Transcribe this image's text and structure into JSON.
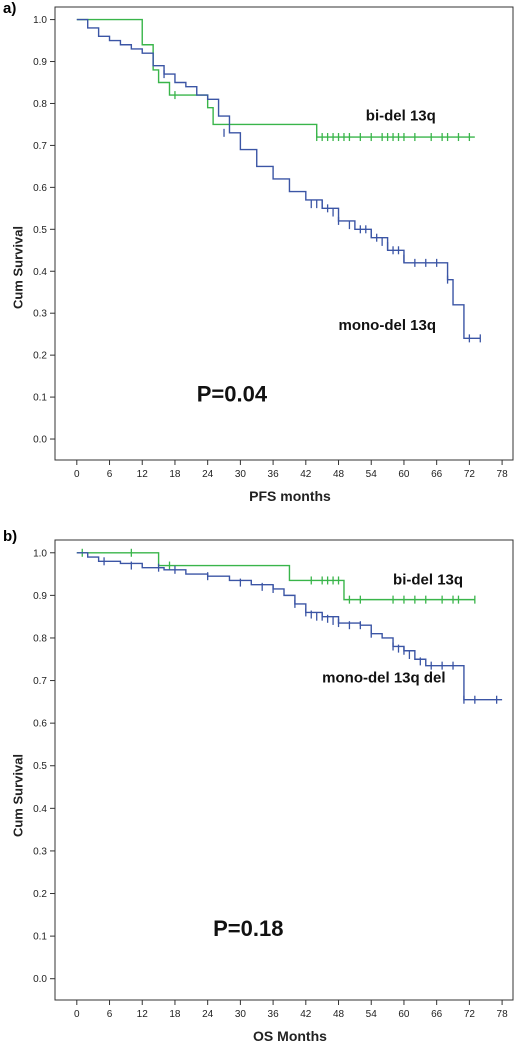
{
  "chart_data": [
    {
      "type": "line",
      "panel_label": "a)",
      "xlabel": "PFS months",
      "ylabel": "Cum Survival",
      "xlim": [
        -4,
        80
      ],
      "ylim": [
        -0.05,
        1.03
      ],
      "xticks": [
        0,
        6,
        12,
        18,
        24,
        30,
        36,
        42,
        48,
        54,
        60,
        66,
        72,
        78
      ],
      "yticks": [
        0.0,
        0.1,
        0.2,
        0.3,
        0.4,
        0.5,
        0.6,
        0.7,
        0.8,
        0.9,
        1.0
      ],
      "grid": false,
      "annotations": [
        {
          "text": "bi-del 13q",
          "x": 53,
          "y": 0.76,
          "size": 15
        },
        {
          "text": "mono-del 13q",
          "x": 48,
          "y": 0.26,
          "size": 15
        },
        {
          "text": "P=0.04",
          "x": 22,
          "y": 0.09,
          "size": 22
        }
      ],
      "series": [
        {
          "name": "bi-del 13q",
          "color": "#39b54a",
          "x": [
            0,
            6,
            12,
            14,
            15,
            16,
            17,
            20,
            24,
            25,
            30,
            31,
            43,
            44,
            73
          ],
          "y": [
            1.0,
            1.0,
            0.94,
            0.88,
            0.85,
            0.85,
            0.82,
            0.82,
            0.79,
            0.75,
            0.75,
            0.75,
            0.75,
            0.72,
            0.72
          ],
          "censor_x": [
            18,
            44,
            45,
            46,
            47,
            48,
            49,
            50,
            52,
            54,
            56,
            57,
            58,
            59,
            60,
            62,
            65,
            67,
            68,
            70,
            72
          ],
          "censor_y": [
            0.82,
            0.72,
            0.72,
            0.72,
            0.72,
            0.72,
            0.72,
            0.72,
            0.72,
            0.72,
            0.72,
            0.72,
            0.72,
            0.72,
            0.72,
            0.72,
            0.72,
            0.72,
            0.72,
            0.72,
            0.72
          ]
        },
        {
          "name": "mono-del 13q",
          "color": "#3b55a5",
          "x": [
            0,
            2,
            4,
            6,
            8,
            10,
            12,
            14,
            16,
            18,
            20,
            22,
            24,
            26,
            28,
            30,
            33,
            36,
            39,
            42,
            45,
            48,
            51,
            54,
            57,
            60,
            63,
            66,
            68,
            69,
            70,
            71,
            74
          ],
          "y": [
            1.0,
            0.98,
            0.96,
            0.95,
            0.94,
            0.93,
            0.92,
            0.89,
            0.87,
            0.85,
            0.84,
            0.82,
            0.81,
            0.77,
            0.73,
            0.69,
            0.65,
            0.62,
            0.59,
            0.57,
            0.55,
            0.52,
            0.5,
            0.48,
            0.45,
            0.42,
            0.42,
            0.42,
            0.38,
            0.32,
            0.32,
            0.24,
            0.24
          ],
          "censor_x": [
            16,
            27,
            43,
            44,
            45,
            46,
            47,
            48,
            50,
            52,
            53,
            54,
            55,
            56,
            57,
            58,
            59,
            60,
            62,
            64,
            66,
            68,
            72,
            74
          ],
          "censor_y": [
            0.87,
            0.73,
            0.56,
            0.56,
            0.56,
            0.55,
            0.54,
            0.52,
            0.51,
            0.5,
            0.5,
            0.49,
            0.48,
            0.47,
            0.46,
            0.45,
            0.45,
            0.43,
            0.42,
            0.42,
            0.42,
            0.38,
            0.24,
            0.24
          ]
        }
      ]
    },
    {
      "type": "line",
      "panel_label": "b)",
      "xlabel": "OS Months",
      "ylabel": "Cum Survival",
      "xlim": [
        -4,
        80
      ],
      "ylim": [
        -0.05,
        1.03
      ],
      "xticks": [
        0,
        6,
        12,
        18,
        24,
        30,
        36,
        42,
        48,
        54,
        60,
        66,
        72,
        78
      ],
      "yticks": [
        0.0,
        0.1,
        0.2,
        0.3,
        0.4,
        0.5,
        0.6,
        0.7,
        0.8,
        0.9,
        1.0
      ],
      "grid": false,
      "annotations": [
        {
          "text": "bi-del 13q",
          "x": 58,
          "y": 0.925,
          "size": 15
        },
        {
          "text": "mono-del 13q del",
          "x": 45,
          "y": 0.695,
          "size": 15
        },
        {
          "text": "P=0.18",
          "x": 25,
          "y": 0.1,
          "size": 22
        }
      ],
      "series": [
        {
          "name": "bi-del 13q",
          "color": "#39b54a",
          "x": [
            0,
            14,
            15,
            38,
            39,
            48,
            49,
            73
          ],
          "y": [
            1.0,
            1.0,
            0.97,
            0.97,
            0.935,
            0.935,
            0.89,
            0.89
          ],
          "censor_x": [
            1,
            10,
            17,
            43,
            45,
            46,
            47,
            48,
            50,
            52,
            58,
            60,
            62,
            64,
            67,
            69,
            70,
            73
          ],
          "censor_y": [
            1.0,
            1.0,
            0.97,
            0.935,
            0.935,
            0.935,
            0.935,
            0.935,
            0.89,
            0.89,
            0.89,
            0.89,
            0.89,
            0.89,
            0.89,
            0.89,
            0.89,
            0.89
          ]
        },
        {
          "name": "mono-del 13q del",
          "color": "#3b55a5",
          "x": [
            0,
            2,
            4,
            8,
            12,
            16,
            20,
            24,
            28,
            32,
            36,
            38,
            40,
            42,
            45,
            48,
            52,
            54,
            56,
            58,
            60,
            62,
            64,
            66,
            68,
            70,
            71,
            78
          ],
          "y": [
            1.0,
            0.99,
            0.98,
            0.975,
            0.965,
            0.96,
            0.95,
            0.945,
            0.935,
            0.925,
            0.915,
            0.9,
            0.88,
            0.86,
            0.85,
            0.835,
            0.83,
            0.81,
            0.8,
            0.78,
            0.77,
            0.75,
            0.735,
            0.735,
            0.735,
            0.735,
            0.655,
            0.655
          ],
          "censor_x": [
            5,
            10,
            15,
            18,
            24,
            30,
            34,
            36,
            40,
            42,
            43,
            44,
            45,
            46,
            47,
            48,
            50,
            52,
            54,
            58,
            59,
            60,
            61,
            63,
            65,
            67,
            69,
            71,
            73,
            77
          ],
          "censor_y": [
            0.98,
            0.97,
            0.965,
            0.96,
            0.945,
            0.93,
            0.92,
            0.915,
            0.88,
            0.86,
            0.855,
            0.85,
            0.85,
            0.845,
            0.84,
            0.835,
            0.83,
            0.83,
            0.81,
            0.78,
            0.775,
            0.77,
            0.76,
            0.745,
            0.735,
            0.735,
            0.735,
            0.655,
            0.655,
            0.655
          ]
        }
      ]
    }
  ]
}
